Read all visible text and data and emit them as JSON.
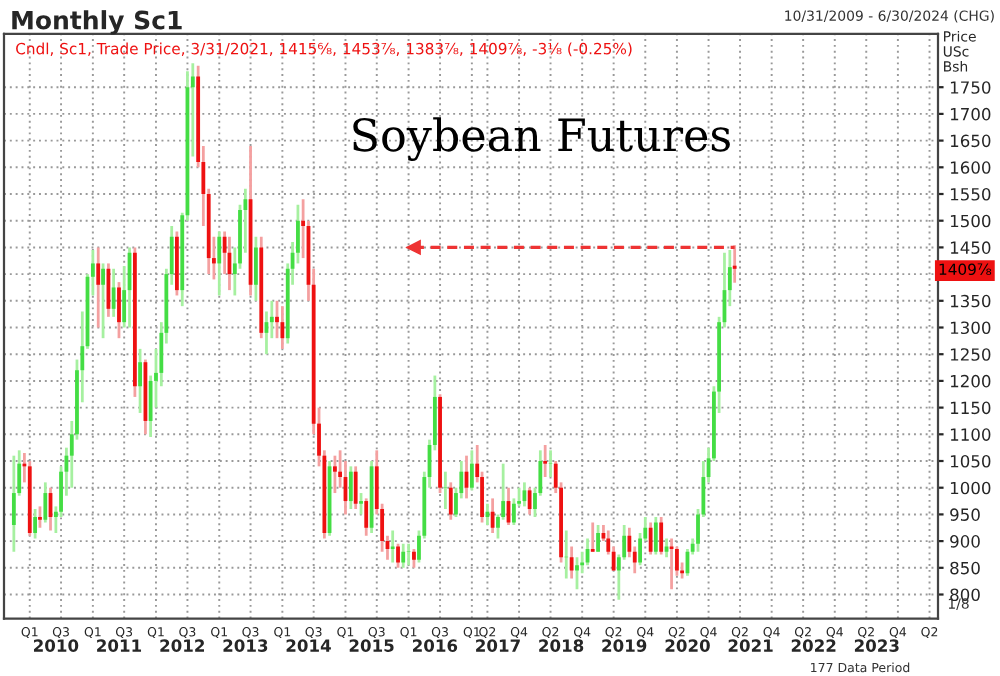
{
  "chart_data": {
    "type": "candlestick",
    "title": "Monthly Sc1",
    "ylabel": "Price\nUSc\nBsh",
    "annotations": [
      "Cndl, Sc1, Trade Price, 3/31/2021, 1415⁶⁄₈, 1453⁷⁄₈, 1383⁷⁄₈, 1409⁷⁄₈, -3¹⁄₈ (-0.25%)",
      "Soybean Futures",
      "10/31/2009 - 6/30/2024 (CHG)",
      "177 Data Period",
      "1/8",
      "1409⁷⁄₈"
    ],
    "x": [
      "2009-10",
      "2009-11",
      "2009-12",
      "2010-01",
      "2010-02",
      "2010-03",
      "2010-04",
      "2010-05",
      "2010-06",
      "2010-07",
      "2010-08",
      "2010-09",
      "2010-10",
      "2010-11",
      "2010-12",
      "2011-01",
      "2011-02",
      "2011-03",
      "2011-04",
      "2011-05",
      "2011-06",
      "2011-07",
      "2011-08",
      "2011-09",
      "2011-10",
      "2011-11",
      "2011-12",
      "2012-01",
      "2012-02",
      "2012-03",
      "2012-04",
      "2012-05",
      "2012-06",
      "2012-07",
      "2012-08",
      "2012-09",
      "2012-10",
      "2012-11",
      "2012-12",
      "2013-01",
      "2013-02",
      "2013-03",
      "2013-04",
      "2013-05",
      "2013-06",
      "2013-07",
      "2013-08",
      "2013-09",
      "2013-10",
      "2013-11",
      "2013-12",
      "2014-01",
      "2014-02",
      "2014-03",
      "2014-04",
      "2014-05",
      "2014-06",
      "2014-07",
      "2014-08",
      "2014-09",
      "2014-10",
      "2014-11",
      "2014-12",
      "2015-01",
      "2015-02",
      "2015-03",
      "2015-04",
      "2015-05",
      "2015-06",
      "2015-07",
      "2015-08",
      "2015-09",
      "2015-10",
      "2015-11",
      "2015-12",
      "2016-01",
      "2016-02",
      "2016-03",
      "2016-04",
      "2016-05",
      "2016-06",
      "2016-07",
      "2016-08",
      "2016-09",
      "2016-10",
      "2016-11",
      "2016-12",
      "2017-01",
      "2017-02",
      "2017-03",
      "2017-04",
      "2017-05",
      "2017-06",
      "2017-07",
      "2017-08",
      "2017-09",
      "2017-10",
      "2017-11",
      "2017-12",
      "2018-01",
      "2018-02",
      "2018-03",
      "2018-04",
      "2018-05",
      "2018-06",
      "2018-07",
      "2018-08",
      "2018-09",
      "2018-10",
      "2018-11",
      "2018-12",
      "2019-01",
      "2019-02",
      "2019-03",
      "2019-04",
      "2019-05",
      "2019-06",
      "2019-07",
      "2019-08",
      "2019-09",
      "2019-10",
      "2019-11",
      "2019-12",
      "2020-01",
      "2020-02",
      "2020-03",
      "2020-04",
      "2020-05",
      "2020-06",
      "2020-07",
      "2020-08",
      "2020-09",
      "2020-10",
      "2020-11",
      "2020-12",
      "2021-01",
      "2021-02",
      "2021-03"
    ],
    "ohlc": [
      [
        930,
        1060,
        880,
        990
      ],
      [
        990,
        1070,
        985,
        1045
      ],
      [
        1045,
        1065,
        1010,
        1040
      ],
      [
        1040,
        1050,
        910,
        915
      ],
      [
        915,
        960,
        905,
        945
      ],
      [
        945,
        965,
        925,
        940
      ],
      [
        940,
        1010,
        935,
        990
      ],
      [
        990,
        1000,
        920,
        945
      ],
      [
        945,
        965,
        915,
        955
      ],
      [
        955,
        1040,
        945,
        1030
      ],
      [
        1030,
        1075,
        985,
        1060
      ],
      [
        1060,
        1125,
        1000,
        1100
      ],
      [
        1100,
        1240,
        1090,
        1220
      ],
      [
        1220,
        1330,
        1160,
        1265
      ],
      [
        1265,
        1400,
        1260,
        1395
      ],
      [
        1395,
        1445,
        1360,
        1420
      ],
      [
        1420,
        1450,
        1300,
        1380
      ],
      [
        1380,
        1420,
        1280,
        1410
      ],
      [
        1410,
        1420,
        1320,
        1335
      ],
      [
        1335,
        1410,
        1320,
        1375
      ],
      [
        1375,
        1385,
        1280,
        1310
      ],
      [
        1310,
        1415,
        1300,
        1370
      ],
      [
        1370,
        1450,
        1300,
        1440
      ],
      [
        1440,
        1450,
        1170,
        1190
      ],
      [
        1190,
        1260,
        1140,
        1235
      ],
      [
        1235,
        1240,
        1100,
        1125
      ],
      [
        1125,
        1210,
        1095,
        1200
      ],
      [
        1200,
        1260,
        1150,
        1215
      ],
      [
        1215,
        1310,
        1190,
        1290
      ],
      [
        1290,
        1410,
        1270,
        1400
      ],
      [
        1400,
        1490,
        1380,
        1470
      ],
      [
        1470,
        1480,
        1360,
        1370
      ],
      [
        1370,
        1515,
        1340,
        1510
      ],
      [
        1510,
        1780,
        1500,
        1750
      ],
      [
        1750,
        1795,
        1620,
        1770
      ],
      [
        1770,
        1790,
        1600,
        1610
      ],
      [
        1610,
        1640,
        1490,
        1550
      ],
      [
        1550,
        1560,
        1400,
        1430
      ],
      [
        1430,
        1470,
        1390,
        1420
      ],
      [
        1420,
        1480,
        1360,
        1470
      ],
      [
        1470,
        1480,
        1400,
        1440
      ],
      [
        1440,
        1470,
        1370,
        1400
      ],
      [
        1400,
        1450,
        1360,
        1420
      ],
      [
        1420,
        1530,
        1410,
        1520
      ],
      [
        1520,
        1560,
        1440,
        1540
      ],
      [
        1540,
        1640,
        1360,
        1380
      ],
      [
        1380,
        1470,
        1350,
        1450
      ],
      [
        1450,
        1470,
        1280,
        1290
      ],
      [
        1290,
        1330,
        1250,
        1310
      ],
      [
        1310,
        1350,
        1280,
        1320
      ],
      [
        1320,
        1350,
        1280,
        1310
      ],
      [
        1310,
        1340,
        1260,
        1280
      ],
      [
        1280,
        1420,
        1270,
        1410
      ],
      [
        1410,
        1460,
        1380,
        1440
      ],
      [
        1440,
        1530,
        1420,
        1500
      ],
      [
        1500,
        1540,
        1430,
        1490
      ],
      [
        1490,
        1500,
        1350,
        1380
      ],
      [
        1380,
        1410,
        1100,
        1120
      ],
      [
        1120,
        1150,
        1040,
        1060
      ],
      [
        1060,
        1070,
        905,
        915
      ],
      [
        915,
        1050,
        910,
        1040
      ],
      [
        1040,
        1060,
        990,
        1030
      ],
      [
        1030,
        1070,
        1000,
        1020
      ],
      [
        1020,
        1050,
        950,
        975
      ],
      [
        975,
        1040,
        960,
        1030
      ],
      [
        1030,
        1040,
        960,
        970
      ],
      [
        970,
        990,
        950,
        975
      ],
      [
        975,
        980,
        910,
        925
      ],
      [
        925,
        1050,
        915,
        1040
      ],
      [
        1040,
        1070,
        950,
        960
      ],
      [
        960,
        970,
        880,
        900
      ],
      [
        900,
        910,
        865,
        885
      ],
      [
        885,
        920,
        860,
        890
      ],
      [
        890,
        895,
        850,
        860
      ],
      [
        860,
        895,
        850,
        880
      ],
      [
        880,
        895,
        855,
        880
      ],
      [
        880,
        885,
        850,
        865
      ],
      [
        865,
        920,
        860,
        910
      ],
      [
        910,
        1030,
        905,
        1020
      ],
      [
        1020,
        1090,
        1000,
        1080
      ],
      [
        1080,
        1210,
        1070,
        1170
      ],
      [
        1170,
        1175,
        990,
        1000
      ],
      [
        1000,
        1030,
        960,
        1000
      ],
      [
        1000,
        1010,
        940,
        950
      ],
      [
        950,
        1000,
        945,
        990
      ],
      [
        990,
        1050,
        980,
        1030
      ],
      [
        1030,
        1060,
        980,
        1000
      ],
      [
        1000,
        1070,
        995,
        1045
      ],
      [
        1045,
        1080,
        1010,
        1020
      ],
      [
        1020,
        1030,
        935,
        945
      ],
      [
        945,
        970,
        930,
        955
      ],
      [
        955,
        980,
        915,
        925
      ],
      [
        925,
        950,
        905,
        945
      ],
      [
        945,
        1045,
        940,
        975
      ],
      [
        975,
        1000,
        930,
        935
      ],
      [
        935,
        980,
        930,
        970
      ],
      [
        970,
        1000,
        965,
        975
      ],
      [
        975,
        1010,
        965,
        995
      ],
      [
        995,
        1000,
        950,
        960
      ],
      [
        960,
        1000,
        945,
        990
      ],
      [
        990,
        1070,
        985,
        1050
      ],
      [
        1050,
        1080,
        1020,
        1045
      ],
      [
        1045,
        1070,
        1020,
        1045
      ],
      [
        1045,
        1050,
        990,
        1000
      ],
      [
        1000,
        1010,
        860,
        870
      ],
      [
        870,
        920,
        830,
        870
      ],
      [
        870,
        890,
        830,
        845
      ],
      [
        845,
        870,
        810,
        855
      ],
      [
        855,
        880,
        840,
        860
      ],
      [
        860,
        905,
        855,
        885
      ],
      [
        885,
        935,
        880,
        880
      ],
      [
        880,
        930,
        880,
        915
      ],
      [
        915,
        930,
        900,
        905
      ],
      [
        905,
        920,
        875,
        880
      ],
      [
        880,
        890,
        845,
        845
      ],
      [
        845,
        875,
        790,
        870
      ],
      [
        870,
        930,
        865,
        910
      ],
      [
        910,
        925,
        870,
        880
      ],
      [
        880,
        890,
        840,
        860
      ],
      [
        860,
        915,
        855,
        905
      ],
      [
        905,
        945,
        900,
        925
      ],
      [
        925,
        935,
        875,
        880
      ],
      [
        880,
        945,
        875,
        935
      ],
      [
        935,
        945,
        875,
        880
      ],
      [
        880,
        905,
        870,
        890
      ],
      [
        890,
        905,
        810,
        885
      ],
      [
        885,
        890,
        835,
        845
      ],
      [
        845,
        860,
        830,
        840
      ],
      [
        840,
        885,
        835,
        880
      ],
      [
        880,
        905,
        875,
        895
      ],
      [
        895,
        960,
        880,
        950
      ],
      [
        950,
        1050,
        945,
        1020
      ],
      [
        1020,
        1075,
        1010,
        1055
      ],
      [
        1055,
        1190,
        1050,
        1180
      ],
      [
        1180,
        1320,
        1140,
        1310
      ],
      [
        1310,
        1440,
        1300,
        1370
      ],
      [
        1370,
        1445,
        1340,
        1413
      ],
      [
        1415.75,
        1453.875,
        1383.875,
        1409.875
      ]
    ],
    "xlim": [
      "2009-08-05",
      "2024-05-20"
    ],
    "xticks": [
      {
        "value": "2010-01",
        "label": "Q1"
      },
      {
        "value": "2010-07",
        "label": "Q3"
      },
      {
        "value": "2011-01",
        "label": "Q1"
      },
      {
        "value": "2011-07",
        "label": "Q3"
      },
      {
        "value": "2012-01",
        "label": "Q1"
      },
      {
        "value": "2012-07",
        "label": "Q3"
      },
      {
        "value": "2013-01",
        "label": "Q1"
      },
      {
        "value": "2013-07",
        "label": "Q3"
      },
      {
        "value": "2014-01",
        "label": "Q1"
      },
      {
        "value": "2014-07",
        "label": "Q3"
      },
      {
        "value": "2015-01",
        "label": "Q1"
      },
      {
        "value": "2015-07",
        "label": "Q3"
      },
      {
        "value": "2016-01",
        "label": "Q1"
      },
      {
        "value": "2016-07",
        "label": "Q3"
      },
      {
        "value": "2017-01",
        "label": "Q1"
      },
      {
        "value": "2017-04",
        "label": "Q2"
      },
      {
        "value": "2017-10",
        "label": "Q4"
      },
      {
        "value": "2018-04",
        "label": "Q2"
      },
      {
        "value": "2018-10",
        "label": "Q4"
      },
      {
        "value": "2019-04",
        "label": "Q2"
      },
      {
        "value": "2019-10",
        "label": "Q4"
      },
      {
        "value": "2020-04",
        "label": "Q2"
      },
      {
        "value": "2020-10",
        "label": "Q4"
      },
      {
        "value": "2021-04",
        "label": "Q2"
      },
      {
        "value": "2021-10",
        "label": "Q4"
      },
      {
        "value": "2022-04",
        "label": "Q2"
      },
      {
        "value": "2022-10",
        "label": "Q4"
      },
      {
        "value": "2023-04",
        "label": "Q2"
      },
      {
        "value": "2023-10",
        "label": "Q4"
      },
      {
        "value": "2024-04",
        "label": "Q2"
      }
    ],
    "x2ticks": [
      {
        "value": "2010-06",
        "label": "2010"
      },
      {
        "value": "2011-06",
        "label": "2011"
      },
      {
        "value": "2012-06",
        "label": "2012"
      },
      {
        "value": "2013-06",
        "label": "2013"
      },
      {
        "value": "2014-06",
        "label": "2014"
      },
      {
        "value": "2015-06",
        "label": "2015"
      },
      {
        "value": "2016-06",
        "label": "2016"
      },
      {
        "value": "2017-06",
        "label": "2017"
      },
      {
        "value": "2018-06",
        "label": "2018"
      },
      {
        "value": "2019-06",
        "label": "2019"
      },
      {
        "value": "2020-06",
        "label": "2020"
      },
      {
        "value": "2021-06",
        "label": "2021"
      },
      {
        "value": "2022-06",
        "label": "2022"
      },
      {
        "value": "2023-06",
        "label": "2023"
      }
    ],
    "ylim": [
      755,
      1850
    ],
    "yticks": [
      800,
      850,
      900,
      950,
      1000,
      1050,
      1100,
      1150,
      1200,
      1250,
      1300,
      1350,
      {
        "value": 1400,
        "label": null
      },
      1450,
      1500,
      1550,
      1600,
      1650,
      1700,
      1750
    ],
    "x2lim": [
      "2009-08-05",
      "2024-05-20"
    ],
    "series": [
      {
        "type": "line",
        "x": [
          "2016-02",
          "2021-03"
        ],
        "values": [
          1450,
          1450
        ],
        "color": "#ee3333",
        "line_style": "dashed",
        "marker": "triangle"
      }
    ],
    "legend": false,
    "grid": true
  }
}
